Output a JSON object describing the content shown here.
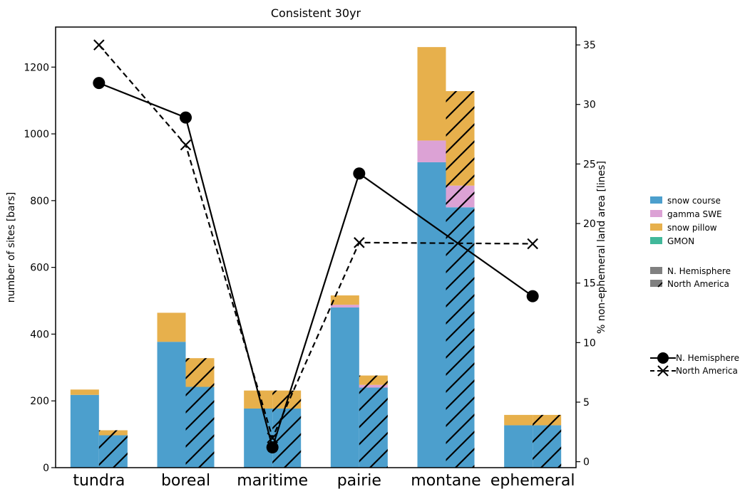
{
  "chart_data": {
    "type": "bar",
    "title": "Consistent 30yr",
    "ylabel": "number of sites [bars]",
    "ylabel_right": "% non-ephemeral land area [lines]",
    "ylim": [
      0,
      1320
    ],
    "ylim_right": [
      -0.5,
      36.5
    ],
    "yticks": [
      0,
      200,
      400,
      600,
      800,
      1000,
      1200
    ],
    "yticks_right": [
      0,
      5,
      10,
      15,
      20,
      25,
      30,
      35
    ],
    "categories": [
      "tundra",
      "boreal",
      "maritime",
      "pairie",
      "montane",
      "ephemeral"
    ],
    "colors": {
      "snow course": "#4c9fcd",
      "gamma SWE": "#dca2d5",
      "snow pillow": "#e7b04c",
      "GMON": "#41b89a"
    },
    "bar_series": [
      {
        "name": "N. Hemisphere",
        "hatch": false,
        "stacks": [
          {
            "name": "snow course",
            "values": [
              218,
              377,
              177,
              480,
              915,
              127
            ]
          },
          {
            "name": "gamma SWE",
            "values": [
              0,
              0,
              0,
              8,
              65,
              0
            ]
          },
          {
            "name": "snow pillow",
            "values": [
              16,
              87,
              54,
              28,
              280,
              31
            ]
          },
          {
            "name": "GMON",
            "values": [
              0,
              0,
              0,
              0,
              0,
              0
            ]
          }
        ]
      },
      {
        "name": "North America",
        "hatch": true,
        "stacks": [
          {
            "name": "snow course",
            "values": [
              97,
              242,
              177,
              240,
              780,
              127
            ]
          },
          {
            "name": "gamma SWE",
            "values": [
              0,
              0,
              0,
              8,
              65,
              0
            ]
          },
          {
            "name": "snow pillow",
            "values": [
              15,
              86,
              54,
              28,
              283,
              31
            ]
          },
          {
            "name": "GMON",
            "values": [
              0,
              0,
              0,
              0,
              0,
              0
            ]
          }
        ]
      }
    ],
    "line_series": [
      {
        "name": "N. Hemisphere",
        "marker": "circle",
        "style": "solid",
        "values": [
          31.8,
          28.9,
          1.2,
          24.2,
          null,
          13.9
        ]
      },
      {
        "name": "North America",
        "marker": "x",
        "style": "dashed",
        "values": [
          35.0,
          26.6,
          2.0,
          18.4,
          null,
          18.3
        ]
      }
    ],
    "legend": {
      "placement": "right",
      "colors": [
        "snow course",
        "gamma SWE",
        "snow pillow",
        "GMON"
      ],
      "bars": [
        "N. Hemisphere",
        "North America"
      ],
      "lines": [
        "N. Hemisphere",
        "North America"
      ]
    }
  }
}
